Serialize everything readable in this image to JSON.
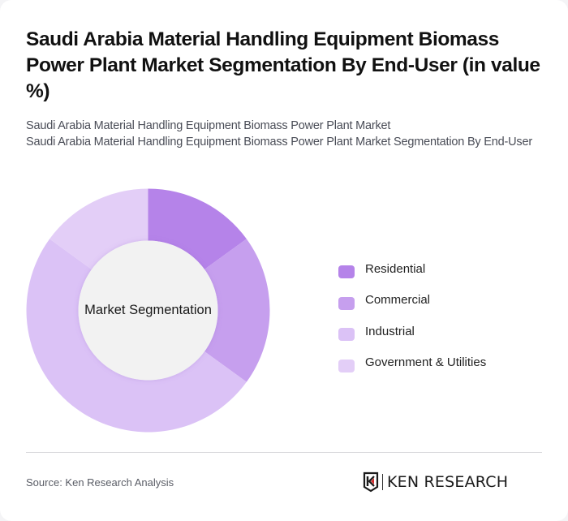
{
  "header": {
    "title": "Saudi Arabia Material Handling Equipment Biomass Power Plant Market Segmentation By End-User (in value %)",
    "subtitle_line1": "Saudi Arabia Material Handling Equipment Biomass Power Plant Market",
    "subtitle_line2": "Saudi Arabia Material Handling Equipment Biomass Power Plant Market Segmentation By End-User"
  },
  "chart_data": {
    "type": "pie",
    "variant": "donut",
    "title": "Saudi Arabia Material Handling Equipment Biomass Power Plant Market Segmentation By End-User (in value %)",
    "center_label": "Market Segmentation",
    "categories": [
      "Residential",
      "Commercial",
      "Industrial",
      "Government & Utilities"
    ],
    "values": [
      15,
      20,
      50,
      15
    ],
    "colors": [
      "#b583e9",
      "#c69fee",
      "#dbc2f6",
      "#e3cef7"
    ],
    "legend_position": "right",
    "start_angle_deg": 0,
    "direction": "clockwise"
  },
  "legend": {
    "items": [
      {
        "label": "Residential",
        "color": "#b583e9"
      },
      {
        "label": "Commercial",
        "color": "#c69fee"
      },
      {
        "label": "Industrial",
        "color": "#dbc2f6"
      },
      {
        "label": "Government & Utilities",
        "color": "#e3cef7"
      }
    ]
  },
  "footer": {
    "source": "Source: Ken Research Analysis",
    "logo_text": "KEN RESEARCH"
  }
}
